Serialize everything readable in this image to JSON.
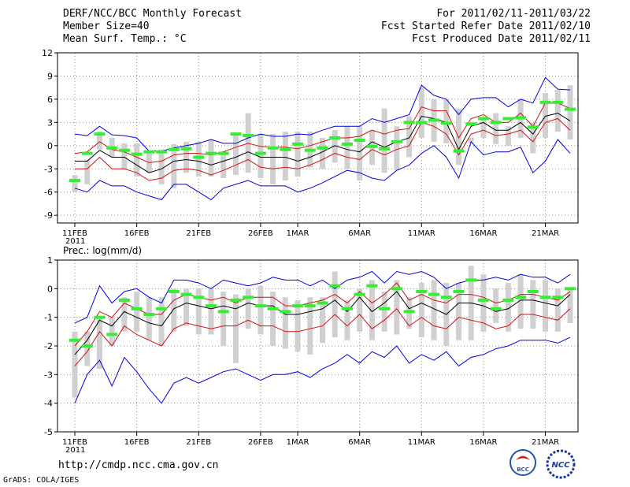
{
  "header": {
    "title": "DERF/NCC/BCC Monthly Forecast",
    "member_size": "Member Size=40",
    "variable": "Mean Surf. Temp.: °C",
    "period": "For 2011/02/11-2011/03/22",
    "fcst_start": "Fcst Started Refer Date 2011/02/10",
    "fcst_produced": "Fcst Produced Date 2011/02/11"
  },
  "footer": {
    "url": "http://cmdp.ncc.cma.gov.cn",
    "grads": "GrADS: COLA/IGES",
    "logo_bcc": "BCC",
    "logo_ncc": "NCC"
  },
  "colors": {
    "box": "#d0d0d0",
    "median": "#000000",
    "quartile": "#d01010",
    "extreme": "#0000dd",
    "ensemble_mean": "#33ee33",
    "grid": "#888888"
  },
  "chart_data": [
    {
      "type": "boxplot-timeseries",
      "title": "Mean Surf. Temp.: °C",
      "ylim": [
        -10,
        12
      ],
      "yticks": [
        -9,
        -6,
        -3,
        0,
        3,
        6,
        9,
        12
      ],
      "xtick_labels": [
        "11FEB\n2011",
        "16FEB",
        "21FEB",
        "26FEB",
        "1MAR",
        "6MAR",
        "11MAR",
        "16MAR",
        "21MAR"
      ],
      "xtick_days": [
        0,
        5,
        10,
        15,
        18,
        23,
        28,
        33,
        38
      ],
      "days": 40,
      "max": [
        1.5,
        1.3,
        2.5,
        1.4,
        1.3,
        1.0,
        -0.7,
        -0.7,
        -0.3,
        0.0,
        0.3,
        0.8,
        0.3,
        0.3,
        1.0,
        1.5,
        1.2,
        1.2,
        1.5,
        1.4,
        2.0,
        2.5,
        2.5,
        2.5,
        3.5,
        3.0,
        3.5,
        4.0,
        7.8,
        6.5,
        6.0,
        4.0,
        6.0,
        6.2,
        6.2,
        5.0,
        6.0,
        5.5,
        8.8,
        7.3,
        7.2
      ],
      "q75": [
        -1.0,
        -0.8,
        0.5,
        -0.5,
        -0.8,
        -1.5,
        -2.2,
        -2.0,
        -1.2,
        -1.0,
        -1.0,
        -1.2,
        -0.8,
        -0.2,
        0.3,
        -0.1,
        -0.2,
        -0.2,
        -0.4,
        0.0,
        0.5,
        1.0,
        1.0,
        1.2,
        2.0,
        1.5,
        2.0,
        2.2,
        5.0,
        4.5,
        4.5,
        1.0,
        3.5,
        4.0,
        3.0,
        3.0,
        4.2,
        2.5,
        5.5,
        5.5,
        4.8
      ],
      "median": [
        -2.0,
        -2.0,
        -0.6,
        -1.5,
        -1.5,
        -2.5,
        -3.5,
        -3.0,
        -2.0,
        -1.8,
        -2.0,
        -2.5,
        -2.0,
        -1.5,
        -0.8,
        -1.5,
        -1.5,
        -1.5,
        -2.0,
        -1.5,
        -0.8,
        0.0,
        -0.5,
        -0.8,
        0.5,
        -0.2,
        0.5,
        1.0,
        3.8,
        3.5,
        3.0,
        -0.5,
        2.5,
        3.0,
        2.0,
        2.0,
        3.0,
        1.5,
        3.8,
        4.2,
        3.2
      ],
      "q25": [
        -3.0,
        -3.0,
        -1.5,
        -3.0,
        -3.0,
        -3.5,
        -4.5,
        -4.2,
        -3.2,
        -3.0,
        -3.2,
        -3.8,
        -3.2,
        -2.5,
        -1.8,
        -2.8,
        -3.0,
        -2.8,
        -3.0,
        -2.5,
        -1.8,
        -1.0,
        -1.5,
        -1.8,
        -0.5,
        -1.2,
        -0.5,
        0.0,
        3.0,
        2.5,
        1.5,
        -1.2,
        1.5,
        2.0,
        1.3,
        1.5,
        2.0,
        0.5,
        3.0,
        3.5,
        2.0
      ],
      "min": [
        -5.5,
        -6.0,
        -4.5,
        -5.2,
        -5.2,
        -6.0,
        -6.5,
        -7.0,
        -5.0,
        -5.0,
        -6.0,
        -7.0,
        -5.5,
        -5.0,
        -4.5,
        -5.2,
        -5.2,
        -5.2,
        -6.0,
        -5.5,
        -4.8,
        -4.0,
        -3.2,
        -3.5,
        -4.2,
        -4.5,
        -3.2,
        -2.5,
        -1.0,
        0.0,
        -1.5,
        -4.2,
        0.5,
        -1.2,
        -0.8,
        -0.8,
        -0.2,
        -3.5,
        -2.0,
        0.8,
        -1.0
      ],
      "bar_top": [
        -3.8,
        -1.8,
        1.8,
        1.0,
        0.3,
        0.3,
        -0.9,
        -0.5,
        0.2,
        0.5,
        0.5,
        0.8,
        -0.7,
        1.5,
        4.2,
        1.5,
        1.5,
        1.8,
        1.8,
        1.8,
        1.0,
        2.0,
        2.5,
        2.5,
        2.0,
        4.8,
        2.5,
        3.8,
        7.5,
        6.0,
        6.0,
        4.8,
        1.0,
        3.5,
        4.2,
        2.5,
        6.0,
        3.0,
        6.8,
        7.2,
        7.8
      ],
      "bar_bot": [
        -6.0,
        -5.0,
        -0.5,
        -1.5,
        -3.0,
        -4.0,
        -3.5,
        -5.0,
        -5.5,
        -3.5,
        -4.0,
        -4.0,
        -4.2,
        -3.8,
        -3.5,
        -4.2,
        -5.0,
        -4.5,
        -4.0,
        -2.8,
        -3.0,
        -2.2,
        -3.0,
        -4.5,
        -2.5,
        -3.5,
        -3.2,
        -1.5,
        1.0,
        0.5,
        0.3,
        -2.5,
        0.3,
        1.0,
        0.2,
        0.0,
        1.0,
        -1.0,
        1.0,
        1.8,
        0.8
      ],
      "ens_mean": [
        -4.5,
        -1.0,
        1.5,
        -0.3,
        -0.6,
        -1.1,
        -0.8,
        -0.8,
        -0.5,
        -0.4,
        -1.5,
        -1.0,
        -1.0,
        1.5,
        1.3,
        -1.0,
        -0.3,
        -0.5,
        0.2,
        -0.6,
        -0.3,
        1.0,
        0.2,
        0.7,
        -0.1,
        -0.4,
        0.5,
        3.0,
        3.0,
        3.3,
        2.9,
        -0.7,
        2.8,
        3.5,
        3.0,
        3.5,
        3.6,
        2.4,
        5.6,
        5.6,
        4.7
      ]
    },
    {
      "type": "boxplot-timeseries",
      "title": "Prec.: log(mm/d)",
      "ylim": [
        -5,
        1
      ],
      "yticks": [
        -5,
        -4,
        -3,
        -2,
        -1,
        0,
        1
      ],
      "xtick_labels": [
        "11FEB\n2011",
        "16FEB",
        "21FEB",
        "26FEB",
        "1MAR",
        "6MAR",
        "11MAR",
        "16MAR",
        "21MAR"
      ],
      "xtick_days": [
        0,
        5,
        10,
        15,
        18,
        23,
        28,
        33,
        38
      ],
      "days": 40,
      "max": [
        -1.2,
        -1.0,
        0.1,
        -0.5,
        -0.1,
        0.0,
        -0.3,
        -0.5,
        0.3,
        0.3,
        0.2,
        0.0,
        0.3,
        0.2,
        0.1,
        0.2,
        0.4,
        0.3,
        0.3,
        0.1,
        0.3,
        0.0,
        0.3,
        0.4,
        0.6,
        0.2,
        0.6,
        0.5,
        0.6,
        0.4,
        0.0,
        0.2,
        0.3,
        0.3,
        0.4,
        0.3,
        0.5,
        0.4,
        0.4,
        0.2,
        0.5
      ],
      "q75": [
        -2.0,
        -1.5,
        -0.8,
        -1.0,
        -0.5,
        -0.7,
        -0.9,
        -0.9,
        -0.4,
        -0.2,
        -0.3,
        -0.4,
        -0.3,
        -0.5,
        -0.3,
        -0.3,
        -0.3,
        -0.6,
        -0.6,
        -0.5,
        -0.4,
        -0.2,
        -0.5,
        -0.1,
        -0.5,
        -0.2,
        0.2,
        -0.4,
        -0.2,
        -0.4,
        -0.5,
        -0.2,
        -0.2,
        -0.3,
        -0.5,
        -0.4,
        -0.2,
        -0.2,
        -0.3,
        -0.4,
        -0.1
      ],
      "median": [
        -2.3,
        -1.8,
        -1.1,
        -1.3,
        -0.8,
        -1.0,
        -1.2,
        -1.3,
        -0.7,
        -0.5,
        -0.6,
        -0.7,
        -0.6,
        -0.7,
        -0.5,
        -0.6,
        -0.6,
        -0.9,
        -0.9,
        -0.8,
        -0.7,
        -0.4,
        -0.8,
        -0.3,
        -0.8,
        -0.5,
        -0.1,
        -0.7,
        -0.5,
        -0.7,
        -0.9,
        -0.5,
        -0.5,
        -0.6,
        -0.8,
        -0.7,
        -0.4,
        -0.4,
        -0.5,
        -0.6,
        -0.2
      ],
      "q25": [
        -2.7,
        -2.2,
        -1.5,
        -2.0,
        -1.3,
        -1.6,
        -1.8,
        -2.0,
        -1.4,
        -1.2,
        -1.3,
        -1.4,
        -1.3,
        -1.3,
        -1.1,
        -1.3,
        -1.3,
        -1.5,
        -1.5,
        -1.4,
        -1.3,
        -0.9,
        -1.3,
        -0.9,
        -1.4,
        -1.1,
        -0.7,
        -1.3,
        -1.0,
        -1.3,
        -1.4,
        -1.0,
        -1.1,
        -1.2,
        -1.4,
        -1.3,
        -0.9,
        -0.9,
        -1.0,
        -1.1,
        -0.7
      ],
      "min": [
        -4.0,
        -3.0,
        -2.5,
        -3.4,
        -2.4,
        -2.9,
        -3.5,
        -4.0,
        -3.3,
        -3.1,
        -3.3,
        -3.1,
        -2.9,
        -2.8,
        -3.0,
        -3.2,
        -3.0,
        -3.0,
        -2.9,
        -3.1,
        -2.8,
        -2.6,
        -2.3,
        -2.6,
        -2.2,
        -2.4,
        -2.0,
        -2.6,
        -2.3,
        -2.5,
        -2.2,
        -2.7,
        -2.4,
        -2.3,
        -2.1,
        -2.0,
        -1.8,
        -1.8,
        -1.8,
        -1.9,
        -1.7
      ],
      "bar_top": [
        -1.5,
        -1.5,
        -1.0,
        -1.0,
        -0.3,
        -0.1,
        -0.3,
        -0.3,
        0.0,
        0.0,
        0.0,
        0.0,
        -0.1,
        -0.2,
        0.0,
        0.1,
        -0.1,
        -0.3,
        -0.4,
        -0.3,
        -0.3,
        0.6,
        -0.4,
        0.0,
        0.3,
        -0.1,
        0.3,
        -0.3,
        0.2,
        0.3,
        0.2,
        0.2,
        0.8,
        0.5,
        0.0,
        0.2,
        0.5,
        0.3,
        0.3,
        0.0,
        0.0
      ],
      "bar_bot": [
        -3.8,
        -2.7,
        -2.8,
        -2.0,
        -1.5,
        -1.5,
        -1.8,
        -2.0,
        -1.5,
        -1.3,
        -1.6,
        -1.6,
        -2.0,
        -2.6,
        -1.4,
        -1.6,
        -2.0,
        -2.1,
        -2.2,
        -2.3,
        -1.9,
        -1.7,
        -1.8,
        -1.5,
        -1.8,
        -1.5,
        -1.6,
        -1.4,
        -1.7,
        -1.8,
        -2.0,
        -1.8,
        -1.8,
        -1.5,
        -1.2,
        -1.5,
        -1.4,
        -1.4,
        -1.5,
        -1.5,
        -1.2
      ],
      "ens_mean": [
        -1.8,
        -2.0,
        -1.0,
        -1.6,
        -0.4,
        -0.7,
        -0.9,
        -0.7,
        -0.1,
        -0.2,
        -0.3,
        -0.6,
        -0.8,
        -0.4,
        -0.3,
        -0.6,
        -0.7,
        -0.8,
        -0.6,
        -0.6,
        -0.5,
        0.1,
        -0.7,
        -0.2,
        0.1,
        -0.7,
        0.0,
        -0.8,
        -0.1,
        -0.2,
        -0.3,
        -0.1,
        0.3,
        -0.4,
        -0.7,
        -0.4,
        -0.3,
        -0.1,
        -0.3,
        -0.3,
        0.0
      ]
    }
  ]
}
